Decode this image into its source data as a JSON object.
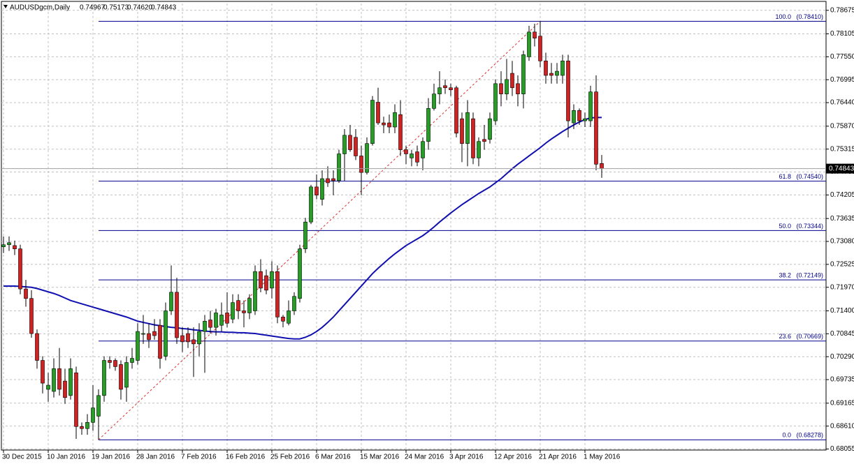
{
  "chart_data": {
    "type": "candlestick",
    "header": {
      "symbol": "AUDUSDgcm,Daily",
      "ohlc": [
        "0.74967",
        "0.75173",
        "0.74620",
        "0.74843"
      ]
    },
    "categories": [
      "30 Dec 2015",
      null,
      null,
      null,
      null,
      null,
      null,
      null,
      "10 Jan 2016",
      null,
      null,
      null,
      null,
      null,
      null,
      null,
      "19 Jan 2016",
      null,
      null,
      null,
      null,
      null,
      null,
      null,
      "28 Jan 2016",
      null,
      null,
      null,
      null,
      null,
      null,
      null,
      "7 Feb 2016",
      null,
      null,
      null,
      null,
      null,
      null,
      null,
      "16 Feb 2016",
      null,
      null,
      null,
      null,
      null,
      null,
      null,
      "25 Feb 2016",
      null,
      null,
      null,
      null,
      null,
      null,
      null,
      "6 Mar 2016",
      null,
      null,
      null,
      null,
      null,
      null,
      null,
      "15 Mar 2016",
      null,
      null,
      null,
      null,
      null,
      null,
      null,
      "24 Mar 2016",
      null,
      null,
      null,
      null,
      null,
      null,
      null,
      "3 Apr 2016",
      null,
      null,
      null,
      null,
      null,
      null,
      null,
      "12 Apr 2016",
      null,
      null,
      null,
      null,
      null,
      null,
      null,
      "21 Apr 2016",
      null,
      null,
      null,
      null,
      null,
      null,
      null,
      "1 May 2016",
      null,
      null,
      null
    ],
    "open": [
      0.7295,
      0.73,
      0.7298,
      0.729,
      0.7193,
      0.717,
      0.7085,
      0.702,
      0.695,
      0.6945,
      0.7,
      0.697,
      0.6935,
      0.699,
      0.686,
      0.6855,
      0.687,
      0.6885,
      0.6935,
      0.702,
      0.702,
      0.701,
      0.6955,
      0.7015,
      0.702,
      0.7085,
      0.7085,
      0.709,
      0.7105,
      0.703,
      0.714,
      0.7185,
      0.708,
      0.7085,
      0.707,
      0.706,
      0.709,
      0.7118,
      0.71,
      0.7105,
      0.7135,
      0.712,
      0.7165,
      0.714,
      0.7135,
      0.714,
      0.7235,
      0.7225,
      0.7195,
      0.7235,
      0.7125,
      0.711,
      0.714,
      0.717,
      0.729,
      0.7355,
      0.744,
      0.741,
      0.746,
      0.746,
      0.7455,
      0.752,
      0.7565,
      0.756,
      0.7515,
      0.7475,
      0.7545,
      0.7645,
      0.7595,
      0.7595,
      0.7585,
      0.7615,
      0.753,
      0.751,
      0.7525,
      0.751,
      0.755,
      0.763,
      0.7665,
      0.7685,
      0.768,
      0.768,
      0.7605,
      0.7545,
      0.7605,
      0.751,
      0.7555,
      0.7555,
      0.76,
      0.769,
      0.7665,
      0.7715,
      0.769,
      0.7665,
      0.7755,
      0.7815,
      0.7805,
      0.7745,
      0.7715,
      0.771,
      0.771,
      0.7745,
      0.7595,
      0.7625,
      0.76,
      0.76,
      0.767,
      0.74967
    ],
    "high": [
      0.732,
      0.732,
      0.731,
      0.73,
      0.7215,
      0.719,
      0.7095,
      0.703,
      0.699,
      0.7025,
      0.705,
      0.7,
      0.7025,
      0.7005,
      0.687,
      0.689,
      0.696,
      0.695,
      0.703,
      0.703,
      0.7025,
      0.702,
      0.703,
      0.705,
      0.711,
      0.713,
      0.711,
      0.712,
      0.712,
      0.716,
      0.725,
      0.722,
      0.71,
      0.71,
      0.71,
      0.711,
      0.713,
      0.714,
      0.7145,
      0.716,
      0.7185,
      0.718,
      0.718,
      0.7165,
      0.718,
      0.725,
      0.7265,
      0.724,
      0.726,
      0.725,
      0.713,
      0.7165,
      0.7185,
      0.73,
      0.7365,
      0.7445,
      0.747,
      0.748,
      0.749,
      0.748,
      0.753,
      0.758,
      0.759,
      0.758,
      0.754,
      0.756,
      0.766,
      0.768,
      0.761,
      0.7615,
      0.764,
      0.765,
      0.754,
      0.753,
      0.754,
      0.756,
      0.7655,
      0.769,
      0.772,
      0.77,
      0.769,
      0.7685,
      0.762,
      0.765,
      0.762,
      0.756,
      0.759,
      0.762,
      0.77,
      0.772,
      0.775,
      0.7745,
      0.771,
      0.777,
      0.783,
      0.7835,
      0.7841,
      0.7765,
      0.774,
      0.774,
      0.776,
      0.776,
      0.764,
      0.763,
      0.762,
      0.7685,
      0.771,
      0.75173
    ],
    "low": [
      0.728,
      0.7285,
      0.7275,
      0.718,
      0.715,
      0.7075,
      0.7,
      0.694,
      0.692,
      0.693,
      0.6935,
      0.6915,
      0.6925,
      0.683,
      0.684,
      0.684,
      0.685,
      0.68278,
      0.692,
      0.7,
      0.6995,
      0.6925,
      0.692,
      0.7,
      0.701,
      0.706,
      0.705,
      0.707,
      0.7,
      0.702,
      0.713,
      0.706,
      0.704,
      0.705,
      0.698,
      0.703,
      0.699,
      0.7085,
      0.708,
      0.709,
      0.71,
      0.711,
      0.712,
      0.71,
      0.712,
      0.713,
      0.7185,
      0.718,
      0.717,
      0.711,
      0.71,
      0.7105,
      0.713,
      0.716,
      0.728,
      0.735,
      0.741,
      0.7395,
      0.744,
      0.742,
      0.745,
      0.7455,
      0.7525,
      0.7505,
      0.742,
      0.747,
      0.754,
      0.759,
      0.757,
      0.757,
      0.757,
      0.7515,
      0.7495,
      0.749,
      0.749,
      0.748,
      0.753,
      0.7625,
      0.764,
      0.7665,
      0.766,
      0.756,
      0.75,
      0.749,
      0.7495,
      0.749,
      0.753,
      0.7545,
      0.759,
      0.7635,
      0.765,
      0.766,
      0.7635,
      0.763,
      0.7745,
      0.778,
      0.773,
      0.769,
      0.769,
      0.769,
      0.769,
      0.756,
      0.758,
      0.759,
      0.7585,
      0.7585,
      0.748,
      0.7462
    ],
    "close": [
      0.73,
      0.7305,
      0.729,
      0.7193,
      0.717,
      0.7085,
      0.702,
      0.6965,
      0.696,
      0.7,
      0.695,
      0.693,
      0.7,
      0.686,
      0.6855,
      0.687,
      0.6905,
      0.6935,
      0.702,
      0.7015,
      0.7005,
      0.695,
      0.7015,
      0.7025,
      0.709,
      0.7085,
      0.707,
      0.708,
      0.7025,
      0.714,
      0.7185,
      0.7075,
      0.7065,
      0.7065,
      0.706,
      0.709,
      0.7115,
      0.71,
      0.7135,
      0.713,
      0.711,
      0.716,
      0.714,
      0.7135,
      0.717,
      0.7235,
      0.7195,
      0.719,
      0.7235,
      0.7125,
      0.7115,
      0.714,
      0.7175,
      0.729,
      0.7355,
      0.744,
      0.742,
      0.746,
      0.745,
      0.7455,
      0.752,
      0.7565,
      0.753,
      0.7515,
      0.7475,
      0.7545,
      0.765,
      0.7595,
      0.759,
      0.7585,
      0.762,
      0.753,
      0.752,
      0.752,
      0.75,
      0.755,
      0.763,
      0.7665,
      0.768,
      0.768,
      0.7675,
      0.757,
      0.7545,
      0.762,
      0.751,
      0.755,
      0.755,
      0.7605,
      0.769,
      0.7665,
      0.77,
      0.768,
      0.7665,
      0.776,
      0.7815,
      0.78,
      0.7745,
      0.771,
      0.771,
      0.772,
      0.7745,
      0.76,
      0.7625,
      0.76,
      0.7605,
      0.767,
      0.7495,
      0.74843
    ],
    "up_color": "#22a022",
    "down_color": "#d42020",
    "moving_average": {
      "color": "#1010b0",
      "values": [
        0.72,
        0.72,
        0.72,
        0.7199,
        0.7198,
        0.7197,
        0.7194,
        0.719,
        0.7186,
        0.7182,
        0.7177,
        0.7171,
        0.7165,
        0.7161,
        0.7157,
        0.7153,
        0.7149,
        0.7145,
        0.7141,
        0.7137,
        0.7133,
        0.7129,
        0.7125,
        0.712,
        0.7115,
        0.7112,
        0.7109,
        0.7106,
        0.7104,
        0.7102,
        0.71,
        0.7099,
        0.7097,
        0.7096,
        0.7094,
        0.7093,
        0.7091,
        0.709,
        0.7089,
        0.7089,
        0.7088,
        0.7088,
        0.7087,
        0.7087,
        0.7086,
        0.7085,
        0.7083,
        0.7081,
        0.7079,
        0.7077,
        0.7075,
        0.7073,
        0.7072,
        0.7072,
        0.7076,
        0.7082,
        0.709,
        0.71,
        0.7112,
        0.7125,
        0.714,
        0.7155,
        0.717,
        0.7185,
        0.72,
        0.7215,
        0.723,
        0.7243,
        0.7255,
        0.7267,
        0.7278,
        0.7288,
        0.7298,
        0.7306,
        0.7314,
        0.7322,
        0.7332,
        0.7343,
        0.7355,
        0.7366,
        0.7377,
        0.7387,
        0.7397,
        0.7406,
        0.7415,
        0.7424,
        0.7432,
        0.744,
        0.745,
        0.746,
        0.7472,
        0.7484,
        0.7495,
        0.7505,
        0.7515,
        0.7525,
        0.7535,
        0.7546,
        0.7556,
        0.7565,
        0.7574,
        0.7582,
        0.759,
        0.7597,
        0.7603,
        0.7607,
        0.7608,
        0.7608
      ]
    },
    "fibonacci": {
      "color": "#00008b",
      "trend_color": "#e03030",
      "levels": [
        "100.0",
        "61.8",
        "50.0",
        "38.2",
        "23.6",
        "0.0"
      ],
      "values": [
        0.7841,
        0.7454,
        0.73344,
        0.72149,
        0.70669,
        0.68278
      ],
      "value_labels": [
        "(0.78410)",
        "(0.74540)",
        "(0.73344)",
        "(0.72149)",
        "(0.70669)",
        "(0.68278)"
      ]
    },
    "ylim": [
      0.6803,
      0.7884
    ],
    "yticks": [
      {
        "value": 0.78675,
        "label": "0.78675"
      },
      {
        "value": 0.78105,
        "label": "0.78105"
      },
      {
        "value": 0.7755,
        "label": "0.77550"
      },
      {
        "value": 0.76995,
        "label": "0.76995"
      },
      {
        "value": 0.7644,
        "label": "0.76440"
      },
      {
        "value": 0.7587,
        "label": "0.75870"
      },
      {
        "value": 0.75315,
        "label": "0.75315"
      },
      {
        "value": 0.7476,
        "label": "0.74760"
      },
      {
        "value": 0.74205,
        "label": "0.74205"
      },
      {
        "value": 0.73635,
        "label": "0.73635"
      },
      {
        "value": 0.7308,
        "label": "0.73080"
      },
      {
        "value": 0.72525,
        "label": "0.72525"
      },
      {
        "value": 0.7197,
        "label": "0.71970"
      },
      {
        "value": 0.714,
        "label": "0.71400"
      },
      {
        "value": 0.70845,
        "label": "0.70845"
      },
      {
        "value": 0.7029,
        "label": "0.70290"
      },
      {
        "value": 0.69735,
        "label": "0.69735"
      },
      {
        "value": 0.69165,
        "label": "0.69165"
      },
      {
        "value": 0.6861,
        "label": "0.68610"
      },
      {
        "value": 0.68055,
        "label": "0.68055"
      }
    ],
    "grid": true
  }
}
